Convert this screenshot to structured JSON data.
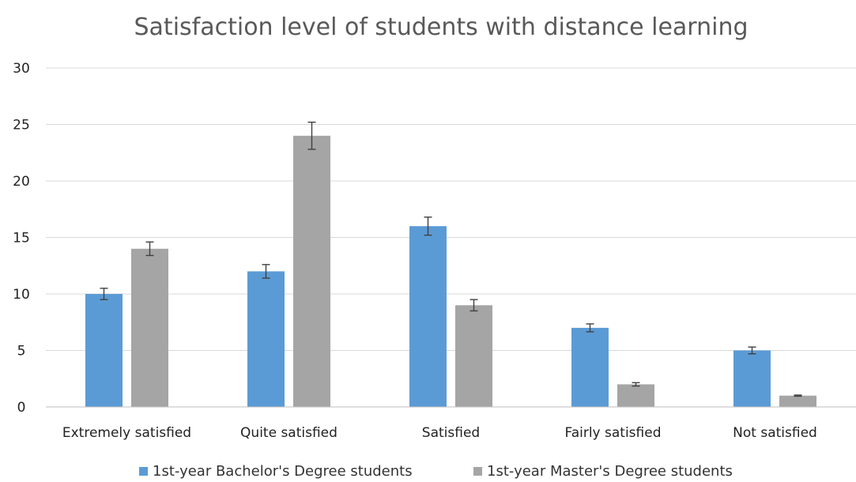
{
  "chart_data": {
    "type": "bar",
    "title": "Satisfaction level of students with distance learning",
    "categories": [
      "Extremely satisfied",
      "Quite satisfied",
      "Satisfied",
      "Fairly satisfied",
      "Not satisfied"
    ],
    "series": [
      {
        "name": "1st-year Bachelor's Degree students",
        "color": "#5b9bd5",
        "values": [
          10,
          12,
          16,
          7,
          5
        ],
        "error": [
          0.5,
          0.6,
          0.8,
          0.35,
          0.3
        ]
      },
      {
        "name": "1st-year Master's Degree students",
        "color": "#a5a5a5",
        "values": [
          14,
          24,
          9,
          2,
          1
        ],
        "error": [
          0.6,
          1.2,
          0.5,
          0.15,
          0.05
        ]
      }
    ],
    "ylim": [
      0,
      30
    ],
    "yticks": [
      0,
      5,
      10,
      15,
      20,
      25,
      30
    ],
    "grid": true,
    "legend": "bottom"
  }
}
